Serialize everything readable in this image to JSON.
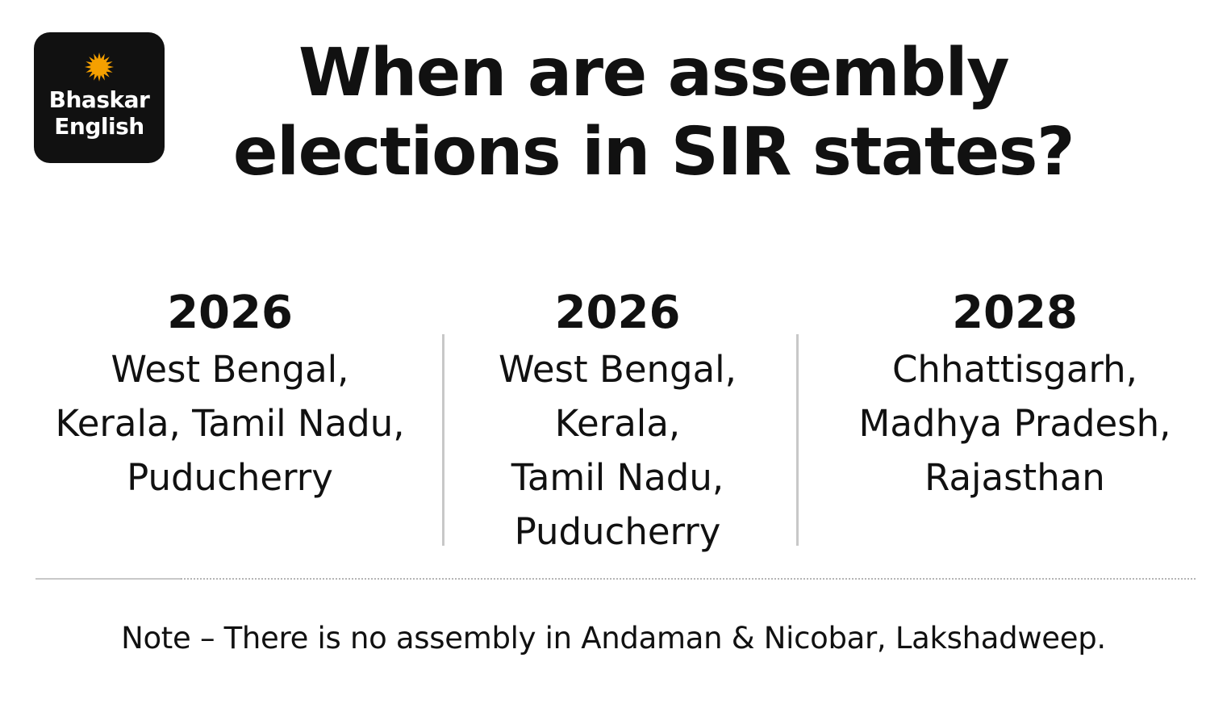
{
  "logo": {
    "icon": "sun-icon",
    "line1": "Bhaskar",
    "line2": "English",
    "bg_color": "#111111",
    "sun_color": "#f5a000"
  },
  "title": {
    "line1": "When are assembly",
    "line2": "elections in SIR states?"
  },
  "columns": [
    {
      "year": "2026",
      "lines": [
        "West Bengal,",
        "Kerala, Tamil Nadu,",
        "Puducherry"
      ]
    },
    {
      "year": "2026",
      "lines": [
        "West Bengal,",
        "Kerala,",
        "Tamil Nadu,",
        "Puducherry"
      ]
    },
    {
      "year": "2028",
      "lines": [
        "Chhattisgarh,",
        "Madhya Pradesh,",
        "Rajasthan"
      ]
    }
  ],
  "note": "Note – There is no assembly in Andaman & Nicobar, Lakshadweep."
}
